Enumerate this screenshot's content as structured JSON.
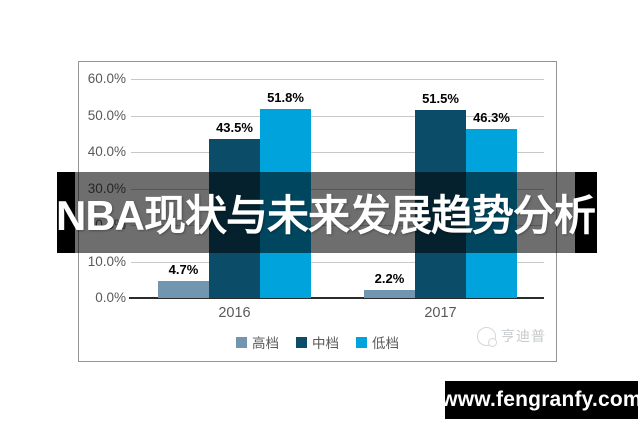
{
  "banner": {
    "title": "NBA现状与未来发展趋势分析"
  },
  "watermark": {
    "label": "亨迪普",
    "icon": "brand-logo-circle"
  },
  "footer": {
    "website": "www.fengranfy.com"
  },
  "colors": {
    "series_high": "#7296B0",
    "series_mid": "#0B4D68",
    "series_low": "#00A3DC",
    "banner_overlay": "rgba(0,0,0,0.57)",
    "banner_caps": "#000000",
    "footer_bg": "#000000"
  },
  "chart_data": {
    "type": "bar",
    "title": "",
    "xlabel": "",
    "ylabel": "",
    "categories": [
      "2016",
      "2017"
    ],
    "series": [
      {
        "name": "高档",
        "color": "#7296B0",
        "values": [
          4.7,
          2.2
        ]
      },
      {
        "name": "中档",
        "color": "#0B4D68",
        "values": [
          43.5,
          51.5
        ]
      },
      {
        "name": "低档",
        "color": "#00A3DC",
        "values": [
          51.8,
          46.3
        ]
      }
    ],
    "data_labels": [
      [
        "4.7%",
        "43.5%",
        "51.8%"
      ],
      [
        "2.2%",
        "51.5%",
        "46.3%"
      ]
    ],
    "data_label_suffix": "%",
    "y_ticks": [
      "0.0%",
      "10.0%",
      "20.0%",
      "30.0%",
      "40.0%",
      "50.0%",
      "60.0%"
    ],
    "ylim": [
      0,
      60
    ],
    "grid": true,
    "legend_position": "bottom"
  }
}
